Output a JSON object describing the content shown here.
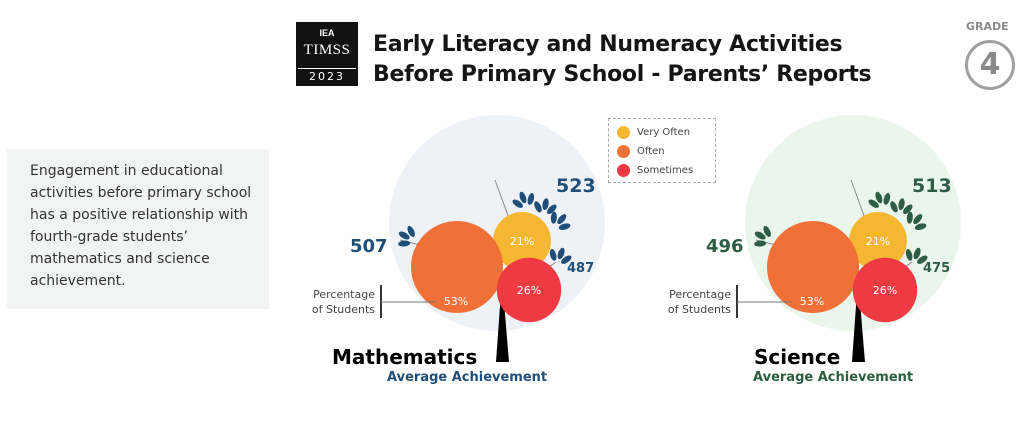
{
  "logo": {
    "org": "IEA",
    "name": "TIMSS",
    "year": "2023"
  },
  "title": {
    "line1": "Early Literacy and Numeracy Activities",
    "line2": "Before Primary School - Parents’ Reports"
  },
  "grade": {
    "label": "GRADE",
    "value": "4"
  },
  "note": "Engagement in educational activities before primary school has a positive relationship with fourth-grade students’ mathematics and science achievement.",
  "legend": [
    {
      "label": "Very Often",
      "color": "#f5b731"
    },
    {
      "label": "Often",
      "color": "#f07037"
    },
    {
      "label": "Sometimes",
      "color": "#ee3a43"
    }
  ],
  "chart_data": [
    {
      "type": "bubble",
      "subject": "Mathematics",
      "subtitle": "Average Achievement",
      "axis_note": "Percentage of Students",
      "accent": "#1f4e79",
      "background": "#eef2f6",
      "categories": [
        "Very Often",
        "Often",
        "Sometimes"
      ],
      "percent_labels": [
        "21%",
        "53%",
        "26%"
      ],
      "percent": [
        21,
        53,
        26
      ],
      "achievement": [
        523,
        507,
        487
      ]
    },
    {
      "type": "bubble",
      "subject": "Science",
      "subtitle": "Average Achievement",
      "axis_note": "Percentage of Students",
      "accent": "#2d5e43",
      "background": "#eaf5ec",
      "categories": [
        "Very Often",
        "Often",
        "Sometimes"
      ],
      "percent_labels": [
        "21%",
        "53%",
        "26%"
      ],
      "percent": [
        21,
        53,
        26
      ],
      "achievement": [
        513,
        496,
        475
      ]
    }
  ]
}
